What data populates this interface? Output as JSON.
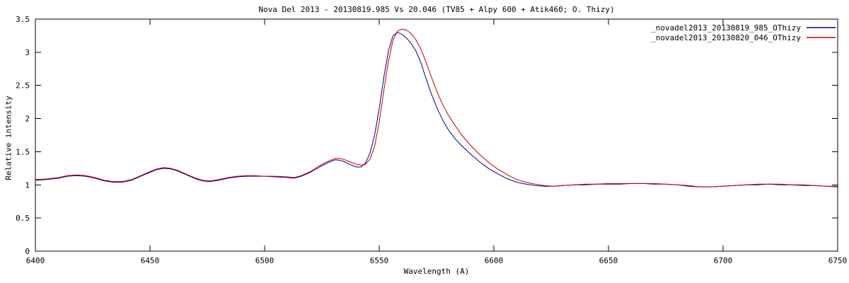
{
  "chart_data": {
    "type": "line",
    "title": "Nova Del 2013 - 20130819.985 Vs 20.046 (TV85 + Alpy 600 + Atik460; O. Thizy)",
    "xlabel": "Wavelength (A)",
    "ylabel": "Relative intensity",
    "xlim": [
      6400,
      6750
    ],
    "ylim": [
      0,
      3.5
    ],
    "x_ticks": [
      {
        "v": 6400,
        "label": "6400"
      },
      {
        "v": 6450,
        "label": "6450"
      },
      {
        "v": 6500,
        "label": "6500"
      },
      {
        "v": 6550,
        "label": "6550"
      },
      {
        "v": 6600,
        "label": "6600"
      },
      {
        "v": 6650,
        "label": "6650"
      },
      {
        "v": 6700,
        "label": "6700"
      },
      {
        "v": 6750,
        "label": "6750"
      }
    ],
    "y_ticks": [
      {
        "v": 0,
        "label": "0"
      },
      {
        "v": 0.5,
        "label": "0.5"
      },
      {
        "v": 1,
        "label": "1"
      },
      {
        "v": 1.5,
        "label": "1.5"
      },
      {
        "v": 2,
        "label": "2"
      },
      {
        "v": 2.5,
        "label": "2.5"
      },
      {
        "v": 3,
        "label": "3"
      },
      {
        "v": 3.5,
        "label": "3.5"
      }
    ],
    "grid": false,
    "legend_position": "top-right",
    "frame_color": "#000000",
    "background_color": "#ffffff",
    "series": [
      {
        "name": "_novadel2013_20130819_985_OThizy",
        "color": "#00008B",
        "points": [
          [
            6400,
            1.07
          ],
          [
            6405,
            1.08
          ],
          [
            6410,
            1.1
          ],
          [
            6414,
            1.13
          ],
          [
            6418,
            1.14
          ],
          [
            6422,
            1.13
          ],
          [
            6426,
            1.1
          ],
          [
            6430,
            1.06
          ],
          [
            6434,
            1.04
          ],
          [
            6438,
            1.04
          ],
          [
            6442,
            1.07
          ],
          [
            6446,
            1.13
          ],
          [
            6450,
            1.19
          ],
          [
            6453,
            1.23
          ],
          [
            6456,
            1.25
          ],
          [
            6459,
            1.24
          ],
          [
            6462,
            1.21
          ],
          [
            6466,
            1.15
          ],
          [
            6470,
            1.09
          ],
          [
            6473,
            1.06
          ],
          [
            6476,
            1.05
          ],
          [
            6480,
            1.07
          ],
          [
            6484,
            1.1
          ],
          [
            6488,
            1.12
          ],
          [
            6492,
            1.13
          ],
          [
            6496,
            1.13
          ],
          [
            6500,
            1.13
          ],
          [
            6505,
            1.12
          ],
          [
            6510,
            1.11
          ],
          [
            6513,
            1.1
          ],
          [
            6516,
            1.13
          ],
          [
            6520,
            1.19
          ],
          [
            6524,
            1.27
          ],
          [
            6528,
            1.34
          ],
          [
            6531,
            1.38
          ],
          [
            6534,
            1.36
          ],
          [
            6537,
            1.31
          ],
          [
            6540,
            1.27
          ],
          [
            6542,
            1.27
          ],
          [
            6544,
            1.33
          ],
          [
            6546,
            1.48
          ],
          [
            6548,
            1.75
          ],
          [
            6550,
            2.15
          ],
          [
            6552,
            2.62
          ],
          [
            6554,
            3.02
          ],
          [
            6556,
            3.25
          ],
          [
            6558,
            3.3
          ],
          [
            6560,
            3.27
          ],
          [
            6562,
            3.21
          ],
          [
            6564,
            3.13
          ],
          [
            6566,
            3.02
          ],
          [
            6568,
            2.86
          ],
          [
            6570,
            2.65
          ],
          [
            6572,
            2.44
          ],
          [
            6574,
            2.26
          ],
          [
            6576,
            2.1
          ],
          [
            6578,
            1.96
          ],
          [
            6580,
            1.84
          ],
          [
            6583,
            1.7
          ],
          [
            6586,
            1.59
          ],
          [
            6590,
            1.46
          ],
          [
            6594,
            1.34
          ],
          [
            6598,
            1.24
          ],
          [
            6602,
            1.16
          ],
          [
            6606,
            1.09
          ],
          [
            6610,
            1.04
          ],
          [
            6614,
            1.01
          ],
          [
            6618,
            0.99
          ],
          [
            6622,
            0.98
          ],
          [
            6626,
            0.98
          ],
          [
            6630,
            0.99
          ],
          [
            6635,
            1.0
          ],
          [
            6640,
            1.0
          ],
          [
            6645,
            1.01
          ],
          [
            6650,
            1.01
          ],
          [
            6655,
            1.01
          ],
          [
            6660,
            1.02
          ],
          [
            6665,
            1.02
          ],
          [
            6670,
            1.01
          ],
          [
            6675,
            1.01
          ],
          [
            6680,
            1.0
          ],
          [
            6685,
            0.98
          ],
          [
            6690,
            0.97
          ],
          [
            6695,
            0.97
          ],
          [
            6700,
            0.98
          ],
          [
            6705,
            0.99
          ],
          [
            6710,
            1.0
          ],
          [
            6715,
            1.0
          ],
          [
            6720,
            1.01
          ],
          [
            6725,
            1.0
          ],
          [
            6730,
            1.0
          ],
          [
            6735,
            0.99
          ],
          [
            6740,
            0.99
          ],
          [
            6745,
            0.98
          ],
          [
            6750,
            0.97
          ]
        ]
      },
      {
        "name": "_novadel2013_20130820_046_OThizy",
        "color": "#C00000",
        "points": [
          [
            6400,
            1.08
          ],
          [
            6405,
            1.09
          ],
          [
            6410,
            1.11
          ],
          [
            6414,
            1.14
          ],
          [
            6418,
            1.15
          ],
          [
            6422,
            1.14
          ],
          [
            6426,
            1.11
          ],
          [
            6430,
            1.07
          ],
          [
            6434,
            1.05
          ],
          [
            6438,
            1.05
          ],
          [
            6442,
            1.08
          ],
          [
            6446,
            1.14
          ],
          [
            6450,
            1.2
          ],
          [
            6453,
            1.24
          ],
          [
            6456,
            1.26
          ],
          [
            6459,
            1.25
          ],
          [
            6462,
            1.22
          ],
          [
            6466,
            1.16
          ],
          [
            6470,
            1.1
          ],
          [
            6473,
            1.07
          ],
          [
            6476,
            1.06
          ],
          [
            6480,
            1.08
          ],
          [
            6484,
            1.11
          ],
          [
            6488,
            1.13
          ],
          [
            6492,
            1.14
          ],
          [
            6496,
            1.14
          ],
          [
            6500,
            1.13
          ],
          [
            6505,
            1.13
          ],
          [
            6510,
            1.12
          ],
          [
            6513,
            1.11
          ],
          [
            6516,
            1.14
          ],
          [
            6520,
            1.2
          ],
          [
            6524,
            1.29
          ],
          [
            6528,
            1.36
          ],
          [
            6531,
            1.4
          ],
          [
            6534,
            1.39
          ],
          [
            6537,
            1.35
          ],
          [
            6540,
            1.31
          ],
          [
            6542,
            1.3
          ],
          [
            6544,
            1.31
          ],
          [
            6546,
            1.39
          ],
          [
            6548,
            1.58
          ],
          [
            6550,
            1.95
          ],
          [
            6552,
            2.42
          ],
          [
            6554,
            2.86
          ],
          [
            6556,
            3.18
          ],
          [
            6558,
            3.32
          ],
          [
            6560,
            3.35
          ],
          [
            6562,
            3.33
          ],
          [
            6564,
            3.28
          ],
          [
            6566,
            3.19
          ],
          [
            6568,
            3.06
          ],
          [
            6570,
            2.89
          ],
          [
            6572,
            2.7
          ],
          [
            6574,
            2.51
          ],
          [
            6576,
            2.34
          ],
          [
            6578,
            2.19
          ],
          [
            6580,
            2.06
          ],
          [
            6583,
            1.9
          ],
          [
            6586,
            1.75
          ],
          [
            6590,
            1.59
          ],
          [
            6594,
            1.45
          ],
          [
            6598,
            1.33
          ],
          [
            6602,
            1.23
          ],
          [
            6606,
            1.15
          ],
          [
            6610,
            1.08
          ],
          [
            6614,
            1.04
          ],
          [
            6618,
            1.01
          ],
          [
            6622,
            0.99
          ],
          [
            6626,
            0.98
          ],
          [
            6630,
            0.99
          ],
          [
            6635,
            1.0
          ],
          [
            6640,
            1.01
          ],
          [
            6645,
            1.01
          ],
          [
            6650,
            1.02
          ],
          [
            6655,
            1.02
          ],
          [
            6660,
            1.02
          ],
          [
            6665,
            1.02
          ],
          [
            6670,
            1.02
          ],
          [
            6675,
            1.01
          ],
          [
            6680,
            1.0
          ],
          [
            6685,
            0.99
          ],
          [
            6690,
            0.97
          ],
          [
            6695,
            0.97
          ],
          [
            6700,
            0.98
          ],
          [
            6705,
            0.99
          ],
          [
            6710,
            1.0
          ],
          [
            6715,
            1.01
          ],
          [
            6720,
            1.01
          ],
          [
            6725,
            1.01
          ],
          [
            6730,
            1.0
          ],
          [
            6735,
            1.0
          ],
          [
            6740,
            0.99
          ],
          [
            6745,
            0.98
          ],
          [
            6750,
            0.98
          ]
        ]
      }
    ]
  }
}
